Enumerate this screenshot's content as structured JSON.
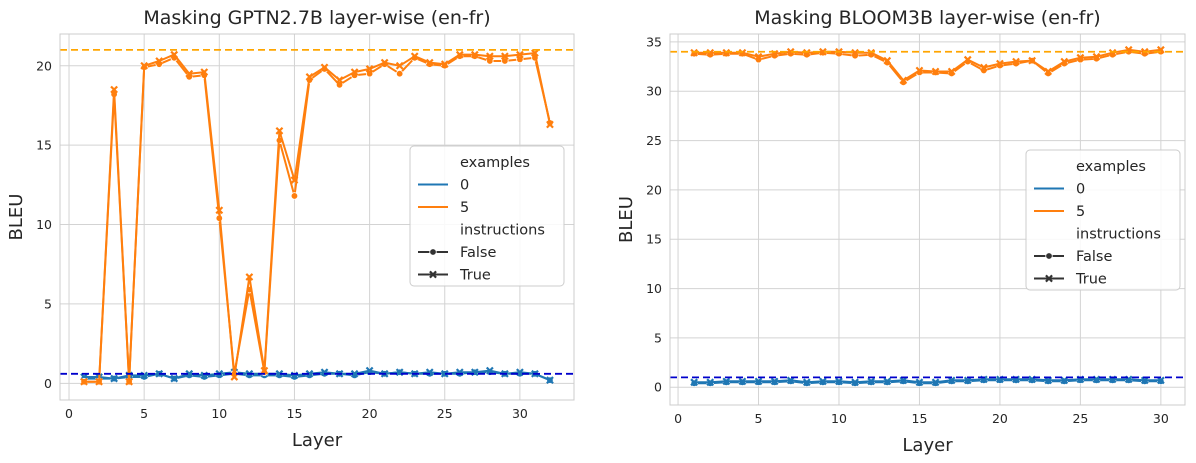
{
  "chart_data": [
    {
      "type": "line",
      "title": "Masking GPTN2.7B layer-wise (en-fr)",
      "xlabel": "Layer",
      "ylabel": "BLEU",
      "xlim": [
        -0.6,
        33.6
      ],
      "ylim": [
        -1.05,
        22.0
      ],
      "xticks": [
        0,
        5,
        10,
        15,
        20,
        25,
        30
      ],
      "yticks": [
        0,
        5,
        10,
        15,
        20
      ],
      "grid": true,
      "legend": {
        "placement": "center-right",
        "entries": [
          {
            "label": "examples",
            "kind": "header"
          },
          {
            "label": "0",
            "kind": "line",
            "color": "#1f77b4"
          },
          {
            "label": "5",
            "kind": "line",
            "color": "#ff7f0e"
          },
          {
            "label": "instructions",
            "kind": "header"
          },
          {
            "label": "False",
            "kind": "marker",
            "marker": "circle"
          },
          {
            "label": "True",
            "kind": "marker",
            "marker": "x"
          }
        ]
      },
      "reference_lines": [
        {
          "y": 21.0,
          "color": "#ffa500",
          "style": "dashed"
        },
        {
          "y": 0.6,
          "color": "#0000cc",
          "style": "dashed"
        }
      ],
      "x": [
        1,
        2,
        3,
        4,
        5,
        6,
        7,
        8,
        9,
        10,
        11,
        12,
        13,
        14,
        15,
        16,
        17,
        18,
        19,
        20,
        21,
        22,
        23,
        24,
        25,
        26,
        27,
        28,
        29,
        30,
        31,
        32
      ],
      "series": [
        {
          "name": "0, False",
          "color": "#1f77b4",
          "marker": "circle",
          "values": [
            0.3,
            0.3,
            0.3,
            0.4,
            0.4,
            0.6,
            0.3,
            0.5,
            0.4,
            0.5,
            0.6,
            0.5,
            0.5,
            0.5,
            0.4,
            0.5,
            0.6,
            0.6,
            0.5,
            0.7,
            0.6,
            0.7,
            0.6,
            0.6,
            0.6,
            0.6,
            0.7,
            0.7,
            0.6,
            0.6,
            0.6,
            0.2
          ]
        },
        {
          "name": "0, True",
          "color": "#1f77b4",
          "marker": "x",
          "values": [
            0.4,
            0.4,
            0.3,
            0.5,
            0.5,
            0.6,
            0.3,
            0.6,
            0.5,
            0.6,
            0.7,
            0.6,
            0.6,
            0.6,
            0.5,
            0.6,
            0.7,
            0.6,
            0.6,
            0.8,
            0.6,
            0.7,
            0.6,
            0.7,
            0.6,
            0.7,
            0.7,
            0.8,
            0.6,
            0.7,
            0.6,
            0.2
          ]
        },
        {
          "name": "5, False",
          "color": "#ff7f0e",
          "marker": "circle",
          "values": [
            0.1,
            0.1,
            18.2,
            0.1,
            19.9,
            20.1,
            20.5,
            19.3,
            19.4,
            10.4,
            0.6,
            5.9,
            0.7,
            15.3,
            11.8,
            19.1,
            19.8,
            18.8,
            19.4,
            19.5,
            20.1,
            19.5,
            20.5,
            20.1,
            20.0,
            20.6,
            20.6,
            20.3,
            20.3,
            20.4,
            20.5,
            16.4
          ]
        },
        {
          "name": "5, True",
          "color": "#ff7f0e",
          "marker": "x",
          "values": [
            0.1,
            0.1,
            18.5,
            0.1,
            20.0,
            20.3,
            20.7,
            19.5,
            19.6,
            10.9,
            0.4,
            6.7,
            0.8,
            15.9,
            12.8,
            19.3,
            19.9,
            19.1,
            19.6,
            19.8,
            20.2,
            20.0,
            20.6,
            20.2,
            20.1,
            20.7,
            20.7,
            20.6,
            20.6,
            20.7,
            20.8,
            16.3
          ]
        }
      ]
    },
    {
      "type": "line",
      "title": "Masking BLOOM3B layer-wise (en-fr)",
      "xlabel": "Layer",
      "ylabel": "BLEU",
      "xlim": [
        -0.5,
        31.5
      ],
      "ylim": [
        -1.8,
        35.8
      ],
      "xticks": [
        0,
        5,
        10,
        15,
        20,
        25,
        30
      ],
      "yticks": [
        0,
        5,
        10,
        15,
        20,
        25,
        30,
        35
      ],
      "grid": true,
      "legend": {
        "placement": "center-right",
        "entries": [
          {
            "label": "examples",
            "kind": "header"
          },
          {
            "label": "0",
            "kind": "line",
            "color": "#1f77b4"
          },
          {
            "label": "5",
            "kind": "line",
            "color": "#ff7f0e"
          },
          {
            "label": "instructions",
            "kind": "header"
          },
          {
            "label": "False",
            "kind": "marker",
            "marker": "circle"
          },
          {
            "label": "True",
            "kind": "marker",
            "marker": "x"
          }
        ]
      },
      "reference_lines": [
        {
          "y": 34.0,
          "color": "#ffa500",
          "style": "dashed"
        },
        {
          "y": 1.0,
          "color": "#0000cc",
          "style": "dashed"
        }
      ],
      "x": [
        1,
        2,
        3,
        4,
        5,
        6,
        7,
        8,
        9,
        10,
        11,
        12,
        13,
        14,
        15,
        16,
        17,
        18,
        19,
        20,
        21,
        22,
        23,
        24,
        25,
        26,
        27,
        28,
        29,
        30
      ],
      "series": [
        {
          "name": "0, False",
          "color": "#1f77b4",
          "marker": "circle",
          "values": [
            0.4,
            0.4,
            0.5,
            0.5,
            0.5,
            0.5,
            0.6,
            0.4,
            0.5,
            0.5,
            0.4,
            0.5,
            0.5,
            0.6,
            0.4,
            0.4,
            0.6,
            0.6,
            0.7,
            0.7,
            0.7,
            0.7,
            0.6,
            0.6,
            0.7,
            0.7,
            0.7,
            0.7,
            0.6,
            0.6
          ]
        },
        {
          "name": "0, True",
          "color": "#1f77b4",
          "marker": "x",
          "values": [
            0.5,
            0.5,
            0.6,
            0.6,
            0.6,
            0.6,
            0.7,
            0.5,
            0.6,
            0.6,
            0.5,
            0.6,
            0.6,
            0.7,
            0.5,
            0.5,
            0.7,
            0.7,
            0.8,
            0.8,
            0.8,
            0.8,
            0.7,
            0.7,
            0.8,
            0.8,
            0.8,
            0.8,
            0.7,
            0.7
          ]
        },
        {
          "name": "5, False",
          "color": "#ff7f0e",
          "marker": "circle",
          "values": [
            33.8,
            33.7,
            33.8,
            33.8,
            33.2,
            33.6,
            33.8,
            33.7,
            33.9,
            33.8,
            33.6,
            33.7,
            32.9,
            30.9,
            31.9,
            31.9,
            31.8,
            33.0,
            32.1,
            32.6,
            32.8,
            33.1,
            31.8,
            32.8,
            33.2,
            33.3,
            33.7,
            34.0,
            33.8,
            34.0
          ]
        },
        {
          "name": "5, True",
          "color": "#ff7f0e",
          "marker": "x",
          "values": [
            33.9,
            33.9,
            33.9,
            33.9,
            33.5,
            33.8,
            34.0,
            33.9,
            34.0,
            34.0,
            33.9,
            33.9,
            33.1,
            31.1,
            32.1,
            32.0,
            32.0,
            33.2,
            32.4,
            32.8,
            33.0,
            33.1,
            32.0,
            33.0,
            33.4,
            33.5,
            33.9,
            34.2,
            34.0,
            34.2
          ]
        }
      ]
    }
  ]
}
